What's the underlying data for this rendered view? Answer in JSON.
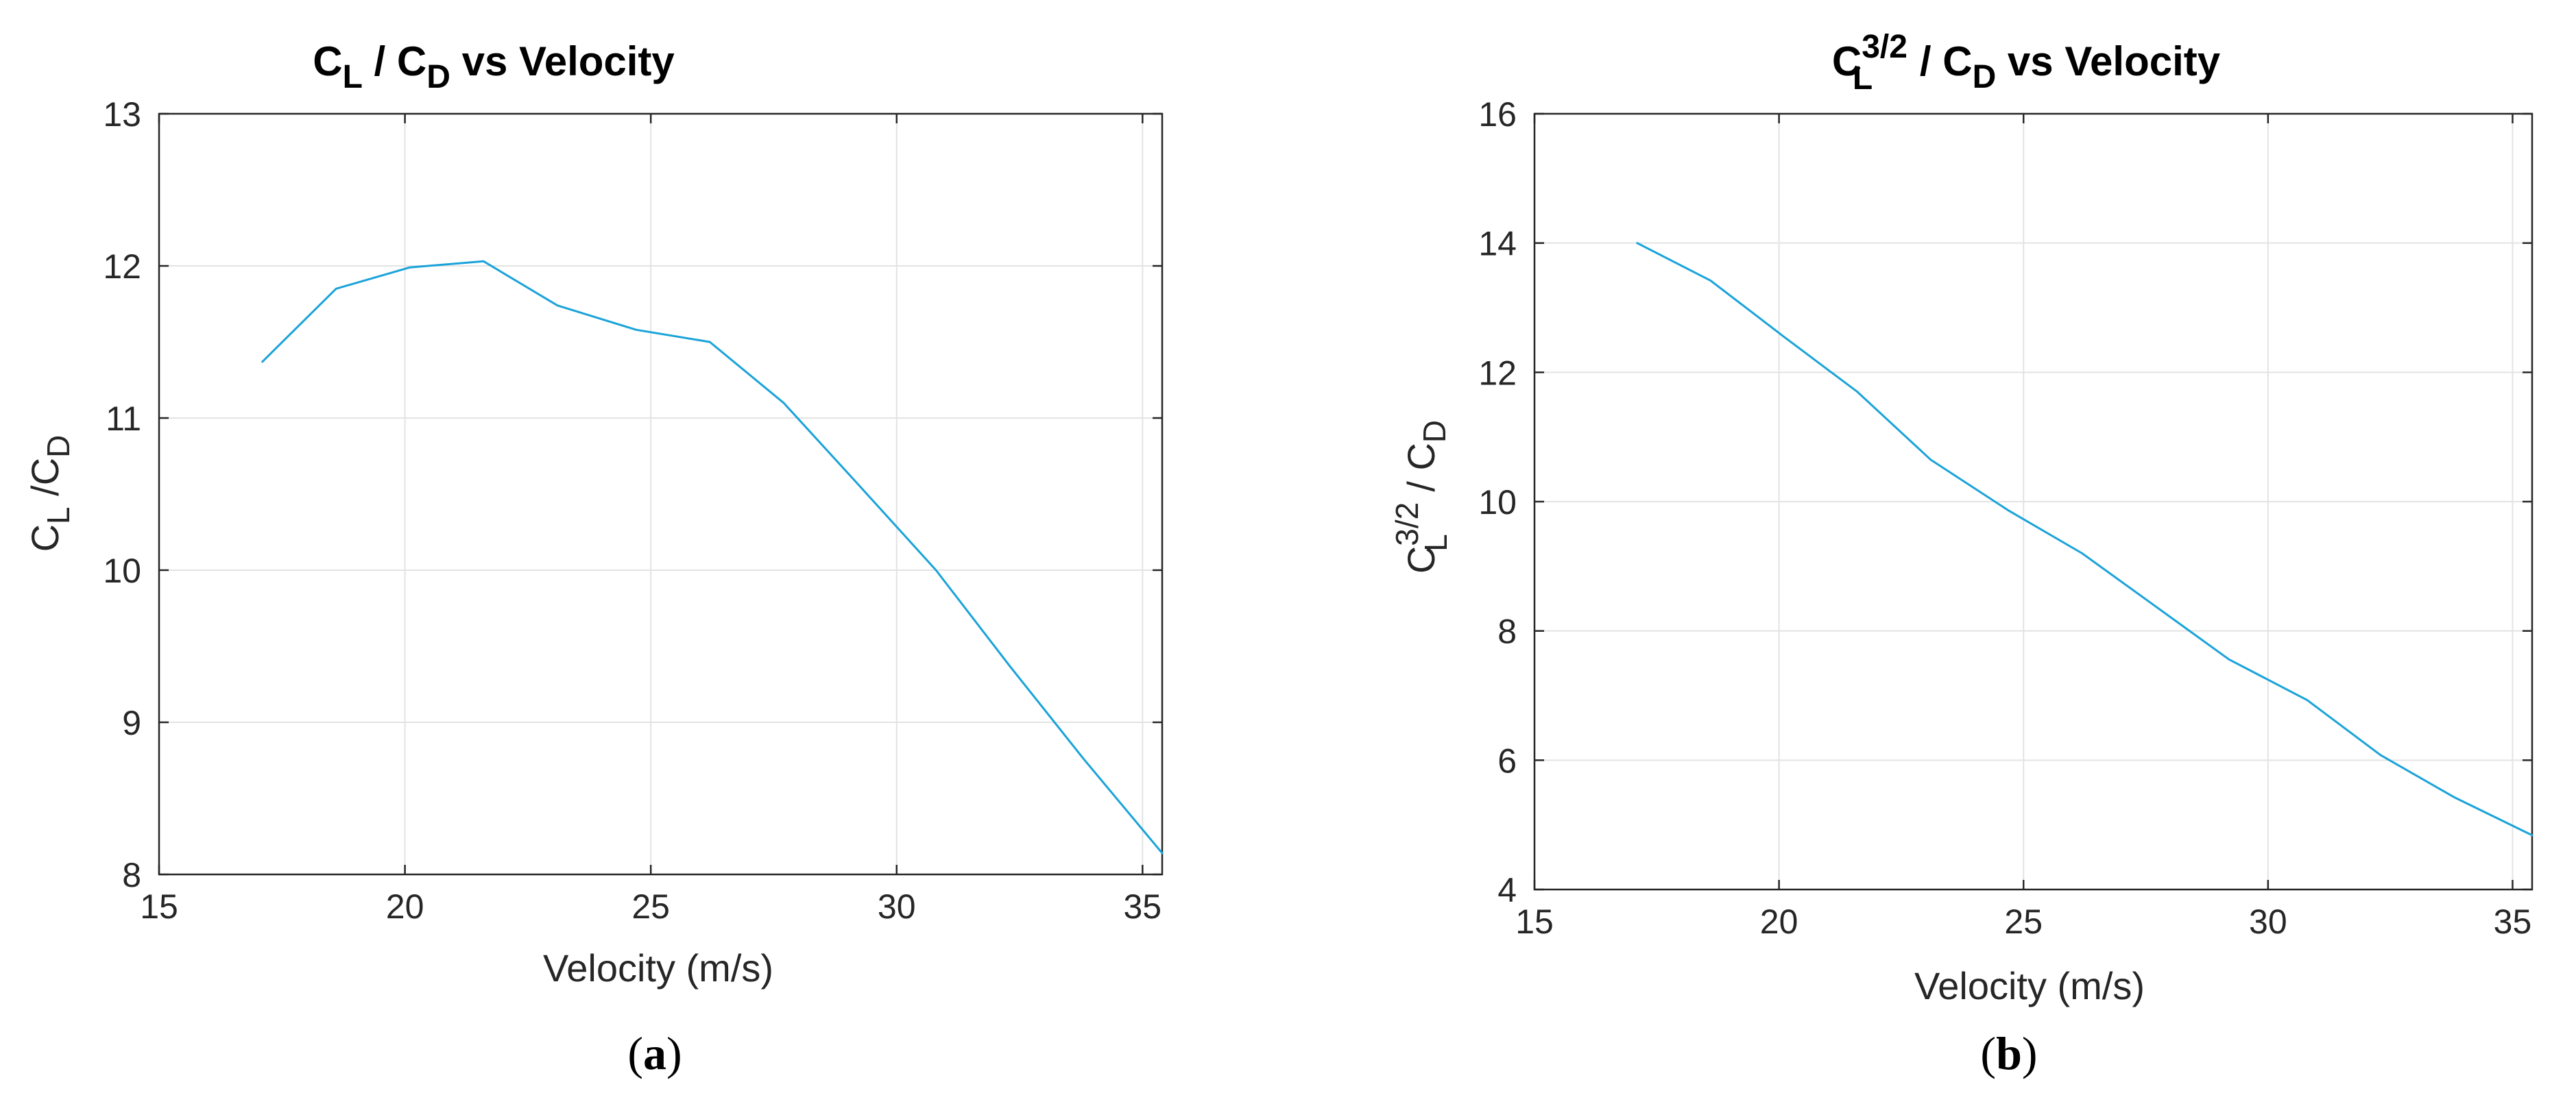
{
  "colors": {
    "series": "#1aa3d9",
    "text": "#262626",
    "grid": "#e3e3e3"
  },
  "chart_data": [
    {
      "type": "line",
      "panel_label": "a",
      "title": {
        "c1": "C",
        "s1": "L",
        "mid": " / C",
        "s2": "D",
        "rest": " vs Velocity"
      },
      "xlabel": "Velocity (m/s)",
      "ylabel": {
        "c1": "C",
        "s1": "L",
        "mid": " /C",
        "s2": "D"
      },
      "xlim": [
        15,
        35.4
      ],
      "ylim": [
        8,
        13
      ],
      "xticks": [
        15,
        20,
        25,
        30,
        35
      ],
      "yticks": [
        8,
        9,
        10,
        11,
        12,
        13
      ],
      "grid": true,
      "series": [
        {
          "name": "CL/CD",
          "x": [
            17.1,
            18.6,
            20.1,
            21.6,
            23.1,
            24.7,
            26.2,
            27.7,
            29.2,
            30.8,
            32.3,
            33.8,
            35.4
          ],
          "y": [
            11.37,
            11.85,
            11.99,
            12.03,
            11.74,
            11.58,
            11.5,
            11.1,
            10.57,
            10.0,
            9.37,
            8.76,
            8.14
          ]
        }
      ]
    },
    {
      "type": "line",
      "panel_label": "b",
      "title": {
        "c1": "C",
        "sup": "3/2",
        "s1": "L",
        "mid": " / C",
        "s2": "D",
        "rest": " vs Velocity"
      },
      "xlabel": "Velocity (m/s)",
      "ylabel": {
        "c1": "C",
        "sup": "3/2",
        "s1": "L",
        "mid": " / C",
        "s2": "D"
      },
      "xlim": [
        15,
        35.4
      ],
      "ylim": [
        4,
        16
      ],
      "xticks": [
        15,
        20,
        25,
        30,
        35
      ],
      "yticks": [
        4,
        6,
        8,
        10,
        12,
        14,
        16
      ],
      "grid": true,
      "series": [
        {
          "name": "CL^(3/2)/CD",
          "x": [
            17.1,
            18.6,
            20.1,
            21.6,
            23.1,
            24.7,
            26.2,
            27.7,
            29.2,
            30.8,
            32.3,
            33.8,
            35.4
          ],
          "y": [
            14.0,
            13.42,
            12.55,
            11.7,
            10.65,
            9.86,
            9.2,
            8.38,
            7.56,
            6.93,
            6.08,
            5.43,
            4.84
          ]
        }
      ]
    }
  ]
}
